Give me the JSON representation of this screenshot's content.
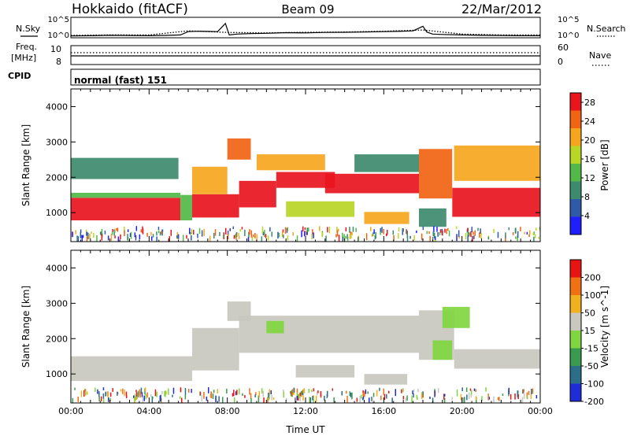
{
  "header": {
    "station": "Hokkaido (fitACF)",
    "beam": "Beam 09",
    "date": "22/Mar/2012"
  },
  "labels": {
    "nsky": "N.Sky",
    "nsearch": "N.Search",
    "freq": "Freq.",
    "mhz": "[MHz]",
    "nave": "Nave",
    "cpid": "CPID",
    "cpid_value": "normal (fast) 151",
    "noise_ticks_top": "10^5",
    "noise_ticks_bottom": "10^0",
    "freq_ticks": [
      "10",
      "8"
    ],
    "nave_ticks": [
      "60",
      "0"
    ]
  },
  "chart_data": [
    {
      "type": "line",
      "name": "noise",
      "x_unit": "hours UT",
      "series": [
        {
          "name": "N.Sky",
          "style": "solid",
          "x": [
            0,
            1,
            2,
            3,
            4,
            5,
            5.6,
            6,
            6.5,
            7,
            7.5,
            7.9,
            8.1,
            8.5,
            9,
            10,
            11,
            12,
            13,
            14,
            15,
            16,
            17,
            17.5,
            18,
            18.2,
            18.5,
            19,
            20,
            21,
            22,
            23,
            24
          ],
          "y_log10": [
            0.45,
            0.5,
            0.6,
            0.55,
            0.5,
            0.6,
            0.7,
            1.5,
            1.6,
            1.55,
            1.5,
            3.5,
            0.7,
            0.9,
            1.0,
            1.1,
            1.25,
            1.2,
            1.3,
            1.35,
            1.4,
            1.5,
            1.6,
            1.7,
            2.8,
            1.4,
            0.9,
            0.8,
            0.7,
            0.6,
            0.55,
            0.5,
            0.5
          ]
        },
        {
          "name": "N.Search",
          "style": "dotted",
          "x": [
            0,
            2,
            4,
            6,
            8,
            10,
            12,
            14,
            16,
            18,
            20,
            22,
            24
          ],
          "y_log10": [
            0.6,
            0.7,
            0.7,
            1.7,
            1.3,
            1.2,
            1.35,
            1.4,
            1.6,
            1.9,
            0.9,
            0.7,
            0.7
          ]
        }
      ],
      "ylim_log10": [
        0,
        5
      ]
    },
    {
      "type": "line",
      "name": "freq-nave",
      "series": [
        {
          "name": "Freq.",
          "unit": "MHz",
          "x": [
            0,
            24
          ],
          "y": [
            9.6,
            9.6
          ]
        },
        {
          "name": "Nave",
          "style": "dotted",
          "x": [
            0,
            24
          ],
          "y": [
            28,
            28
          ]
        }
      ],
      "freq_ylim": [
        8,
        10
      ],
      "nave_ylim": [
        0,
        60
      ]
    },
    {
      "type": "heatmap",
      "name": "power",
      "xlabel": "",
      "ylabel": "Slant Range [km]",
      "xlim": [
        0,
        24
      ],
      "ylim": [
        180,
        4500
      ],
      "yticks": [
        1000,
        2000,
        3000,
        4000
      ],
      "colorbar_label": "Power [dB]",
      "colorbar_ticks": [
        4,
        8,
        12,
        16,
        20,
        24,
        28
      ],
      "colorbar_range": [
        0,
        30
      ],
      "colorbar_colors": [
        "#1e1eff",
        "#2e5aa8",
        "#3d8a6e",
        "#52b848",
        "#b8d626",
        "#f5a61e",
        "#f06414",
        "#e8141e"
      ],
      "regions": [
        {
          "x0": 0,
          "x1": 5.6,
          "r0": 780,
          "r1": 1420,
          "v": 27
        },
        {
          "x0": 0,
          "x1": 5.6,
          "r0": 1420,
          "r1": 1560,
          "v": 14
        },
        {
          "x0": 5.6,
          "x1": 6.2,
          "r0": 780,
          "r1": 1500,
          "v": 12
        },
        {
          "x0": 6.2,
          "x1": 8.6,
          "r0": 860,
          "r1": 1520,
          "v": 28
        },
        {
          "x0": 6.2,
          "x1": 8.0,
          "r0": 1520,
          "r1": 2300,
          "v": 22
        },
        {
          "x0": 8.0,
          "x1": 9.2,
          "r0": 2500,
          "r1": 3100,
          "v": 24
        },
        {
          "x0": 8.6,
          "x1": 10.5,
          "r0": 1150,
          "r1": 1900,
          "v": 27
        },
        {
          "x0": 10.5,
          "x1": 13.5,
          "r0": 1700,
          "r1": 2150,
          "v": 28
        },
        {
          "x0": 9.5,
          "x1": 13.0,
          "r0": 2200,
          "r1": 2650,
          "v": 22
        },
        {
          "x0": 13.0,
          "x1": 17.8,
          "r0": 1550,
          "r1": 2100,
          "v": 27
        },
        {
          "x0": 14.5,
          "x1": 17.8,
          "r0": 2150,
          "r1": 2650,
          "v": 10
        },
        {
          "x0": 17.8,
          "x1": 19.5,
          "r0": 1400,
          "r1": 2800,
          "v": 25
        },
        {
          "x0": 19.5,
          "x1": 24,
          "r0": 880,
          "r1": 1700,
          "v": 27
        },
        {
          "x0": 19.6,
          "x1": 24,
          "r0": 1900,
          "r1": 2900,
          "v": 20
        },
        {
          "x0": 11.0,
          "x1": 14.5,
          "r0": 880,
          "r1": 1320,
          "v": 15
        },
        {
          "x0": 15.0,
          "x1": 17.3,
          "r0": 680,
          "r1": 1020,
          "v": 22
        },
        {
          "x0": 17.8,
          "x1": 19.2,
          "r0": 600,
          "r1": 1120,
          "v": 8
        },
        {
          "x0": 0,
          "x1": 5.5,
          "r0": 1950,
          "r1": 2550,
          "v": 9
        }
      ]
    },
    {
      "type": "heatmap",
      "name": "velocity",
      "xlabel": "Time UT",
      "ylabel": "Slant Range [km]",
      "xlim": [
        0,
        24
      ],
      "ylim": [
        180,
        4500
      ],
      "yticks": [
        1000,
        2000,
        3000,
        4000
      ],
      "xticks": [
        "00:00",
        "04:00",
        "08:00",
        "12:00",
        "16:00",
        "20:00",
        "00:00"
      ],
      "colorbar_label": "Velocity [m s^-1]",
      "colorbar_ticks": [
        "200",
        "100",
        "50",
        "15",
        "-15",
        "-50",
        "-100",
        "-200"
      ],
      "colorbar_colors": [
        "#1e2dd8",
        "#2c6e8a",
        "#3a9a50",
        "#80d640",
        "#c8c8c0",
        "#f0b020",
        "#f07014",
        "#e81414"
      ],
      "regions": [
        {
          "x0": 0,
          "x1": 6.2,
          "r0": 800,
          "r1": 1500,
          "v": "gray"
        },
        {
          "x0": 6.2,
          "x1": 8.6,
          "r0": 1100,
          "r1": 2300,
          "v": "gray"
        },
        {
          "x0": 8.0,
          "x1": 9.2,
          "r0": 2500,
          "r1": 3050,
          "v": "gray"
        },
        {
          "x0": 8.6,
          "x1": 17.8,
          "r0": 1600,
          "r1": 2650,
          "v": "gray"
        },
        {
          "x0": 17.8,
          "x1": 19.6,
          "r0": 1400,
          "r1": 2800,
          "v": "gray"
        },
        {
          "x0": 19.6,
          "x1": 24,
          "r0": 1150,
          "r1": 1700,
          "v": "gray"
        },
        {
          "x0": 10.0,
          "x1": 10.9,
          "r0": 2150,
          "r1": 2500,
          "v": "green"
        },
        {
          "x0": 19.0,
          "x1": 20.4,
          "r0": 2300,
          "r1": 2900,
          "v": "green"
        },
        {
          "x0": 18.5,
          "x1": 19.5,
          "r0": 1400,
          "r1": 1950,
          "v": "green"
        },
        {
          "x0": 11.5,
          "x1": 14.5,
          "r0": 900,
          "r1": 1250,
          "v": "gray"
        },
        {
          "x0": 15.0,
          "x1": 17.2,
          "r0": 700,
          "r1": 1000,
          "v": "gray"
        }
      ]
    }
  ]
}
